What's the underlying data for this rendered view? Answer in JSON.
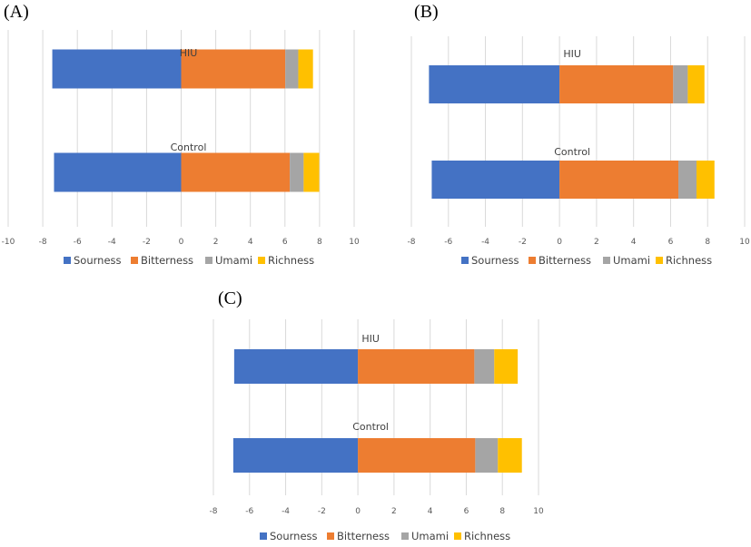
{
  "colors": {
    "Sourness": "#4472c4",
    "Bitterness": "#ed7d31",
    "Umami": "#a5a5a5",
    "Richness": "#ffc000",
    "grid": "#d9d9d9"
  },
  "chart_data": [
    {
      "panel": "(A)",
      "type": "bar",
      "orientation": "horizontal",
      "stacked": true,
      "categories": [
        "HIU",
        "Control"
      ],
      "series": [
        {
          "name": "Sourness",
          "values": [
            -7.45,
            -7.35
          ]
        },
        {
          "name": "Bitterness",
          "values": [
            6.02,
            6.28
          ]
        },
        {
          "name": "Umami",
          "values": [
            0.75,
            0.8
          ]
        },
        {
          "name": "Richness",
          "values": [
            0.85,
            0.9
          ]
        }
      ],
      "xlim": [
        -10,
        10
      ],
      "xticks": [
        "-10",
        "-8",
        "-6",
        "-4",
        "-2",
        "0",
        "2",
        "4",
        "6",
        "8",
        "10"
      ],
      "grid": true,
      "legend": "bottom",
      "title": "",
      "xlabel": "",
      "ylabel": ""
    },
    {
      "panel": "(B)",
      "type": "bar",
      "orientation": "horizontal",
      "stacked": true,
      "categories": [
        "HIU",
        "Control"
      ],
      "series": [
        {
          "name": "Sourness",
          "values": [
            -7.05,
            -6.9
          ]
        },
        {
          "name": "Bitterness",
          "values": [
            6.14,
            6.42
          ]
        },
        {
          "name": "Umami",
          "values": [
            0.79,
            0.98
          ]
        },
        {
          "name": "Richness",
          "values": [
            0.9,
            0.97
          ]
        }
      ],
      "xlim": [
        -8,
        10
      ],
      "xticks": [
        "-8",
        "-6",
        "-4",
        "-2",
        "0",
        "2",
        "4",
        "6",
        "8",
        "10"
      ],
      "grid": true,
      "legend": "bottom",
      "title": "",
      "xlabel": "",
      "ylabel": ""
    },
    {
      "panel": "(C)",
      "type": "bar",
      "orientation": "horizontal",
      "stacked": true,
      "categories": [
        "HIU",
        "Control"
      ],
      "series": [
        {
          "name": "Sourness",
          "values": [
            -6.85,
            -6.9
          ]
        },
        {
          "name": "Bitterness",
          "values": [
            6.45,
            6.5
          ]
        },
        {
          "name": "Umami",
          "values": [
            1.1,
            1.25
          ]
        },
        {
          "name": "Richness",
          "values": [
            1.3,
            1.33
          ]
        }
      ],
      "xlim": [
        -8,
        10
      ],
      "xticks": [
        "-8",
        "-6",
        "-4",
        "-2",
        "0",
        "2",
        "4",
        "6",
        "8",
        "10"
      ],
      "grid": true,
      "legend": "bottom",
      "title": "",
      "xlabel": "",
      "ylabel": ""
    }
  ]
}
